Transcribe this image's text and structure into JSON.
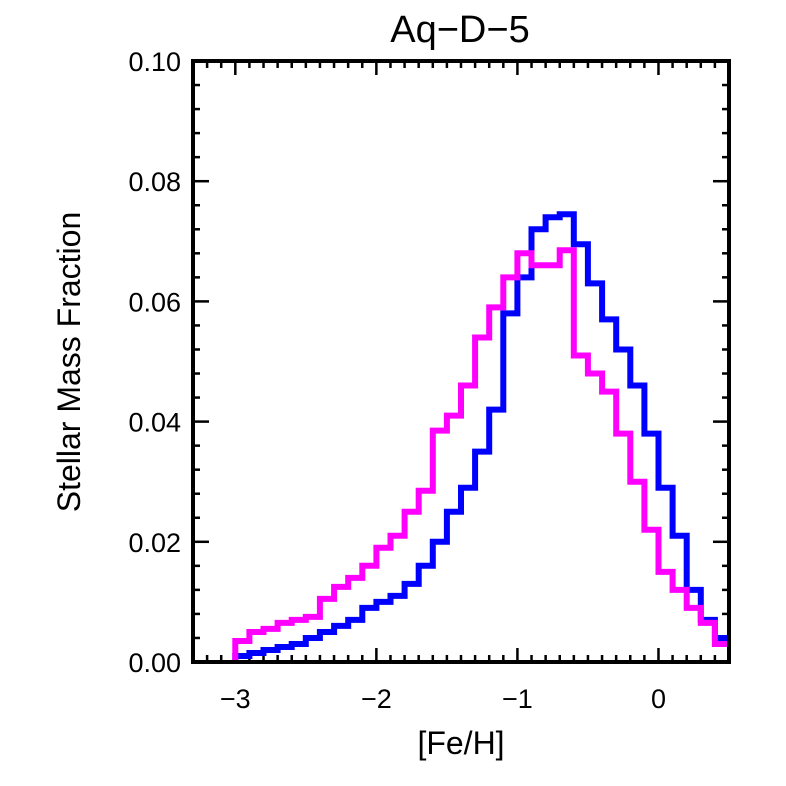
{
  "chart_data": {
    "type": "line",
    "drawstyle": "steps",
    "title": "Aq−D−5",
    "xlabel": "[Fe/H]",
    "ylabel": "Stellar Mass Fraction",
    "xlim": [
      -3.3,
      0.5
    ],
    "ylim": [
      0.0,
      0.1
    ],
    "xticks": [
      -3,
      -2,
      -1,
      0
    ],
    "xtick_labels": [
      "−3",
      "−2",
      "−1",
      "0"
    ],
    "yticks": [
      0.0,
      0.02,
      0.04,
      0.06,
      0.08,
      0.1
    ],
    "ytick_labels": [
      "0.00",
      "0.02",
      "0.04",
      "0.06",
      "0.08",
      "0.10"
    ],
    "bin_edges": [
      -3.0,
      -2.9,
      -2.8,
      -2.7,
      -2.6,
      -2.5,
      -2.4,
      -2.3,
      -2.2,
      -2.1,
      -2.0,
      -1.9,
      -1.8,
      -1.7,
      -1.6,
      -1.5,
      -1.4,
      -1.3,
      -1.2,
      -1.1,
      -1.0,
      -0.9,
      -0.8,
      -0.7,
      -0.6,
      -0.5,
      -0.4,
      -0.3,
      -0.2,
      -0.1,
      0.0,
      0.1,
      0.2,
      0.3,
      0.4,
      0.5
    ],
    "series": [
      {
        "color": "#0000ff",
        "values": [
          0.001,
          0.0015,
          0.002,
          0.0025,
          0.003,
          0.004,
          0.005,
          0.006,
          0.007,
          0.009,
          0.01,
          0.011,
          0.013,
          0.016,
          0.02,
          0.025,
          0.029,
          0.035,
          0.042,
          0.058,
          0.064,
          0.072,
          0.074,
          0.0745,
          0.0695,
          0.063,
          0.057,
          0.052,
          0.046,
          0.038,
          0.029,
          0.021,
          0.012,
          0.007,
          0.004
        ]
      },
      {
        "color": "#ff00ff",
        "values": [
          0.0035,
          0.005,
          0.0055,
          0.0065,
          0.007,
          0.0075,
          0.0105,
          0.0125,
          0.014,
          0.016,
          0.019,
          0.021,
          0.025,
          0.0285,
          0.0385,
          0.041,
          0.046,
          0.054,
          0.059,
          0.064,
          0.068,
          0.066,
          0.066,
          0.0685,
          0.051,
          0.048,
          0.045,
          0.038,
          0.03,
          0.022,
          0.015,
          0.012,
          0.009,
          0.0065,
          0.003
        ]
      }
    ]
  }
}
